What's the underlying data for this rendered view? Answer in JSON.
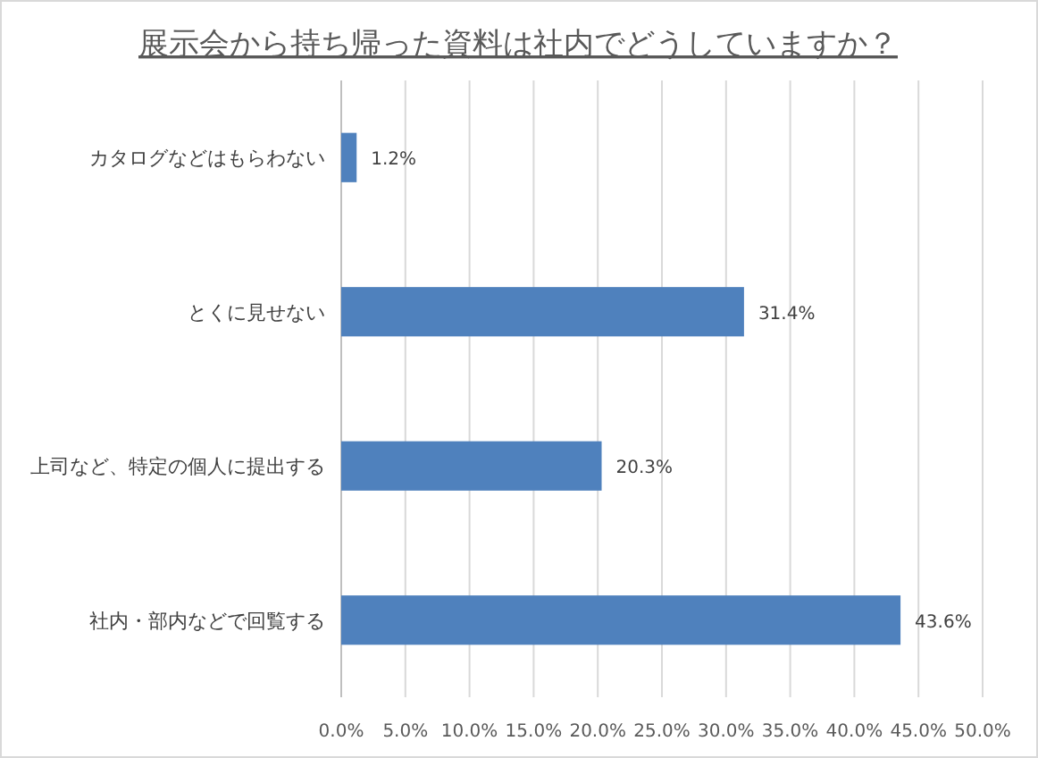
{
  "chart_data": {
    "type": "bar",
    "orientation": "horizontal",
    "title": "展示会から持ち帰った資料は社内でどうしていますか？",
    "categories": [
      "カタログなどはもらわない",
      "とくに見せない",
      "上司など、特定の個人に提出する",
      "社内・部内などで回覧する"
    ],
    "values": [
      1.2,
      31.4,
      20.3,
      43.6
    ],
    "value_labels": [
      "1.2%",
      "31.4%",
      "20.3%",
      "43.6%"
    ],
    "color": "#4f81bd",
    "xlim": [
      0,
      50
    ],
    "xticks": [
      {
        "value": 0,
        "label": "0.0%"
      },
      {
        "value": 5,
        "label": "5.0%"
      },
      {
        "value": 10,
        "label": "10.0%"
      },
      {
        "value": 15,
        "label": "15.0%"
      },
      {
        "value": 20,
        "label": "20.0%"
      },
      {
        "value": 25,
        "label": "25.0%"
      },
      {
        "value": 30,
        "label": "30.0%"
      },
      {
        "value": 35,
        "label": "35.0%"
      },
      {
        "value": 40,
        "label": "40.0%"
      },
      {
        "value": 45,
        "label": "45.0%"
      },
      {
        "value": 50,
        "label": "50.0%"
      }
    ],
    "grid": "x"
  }
}
